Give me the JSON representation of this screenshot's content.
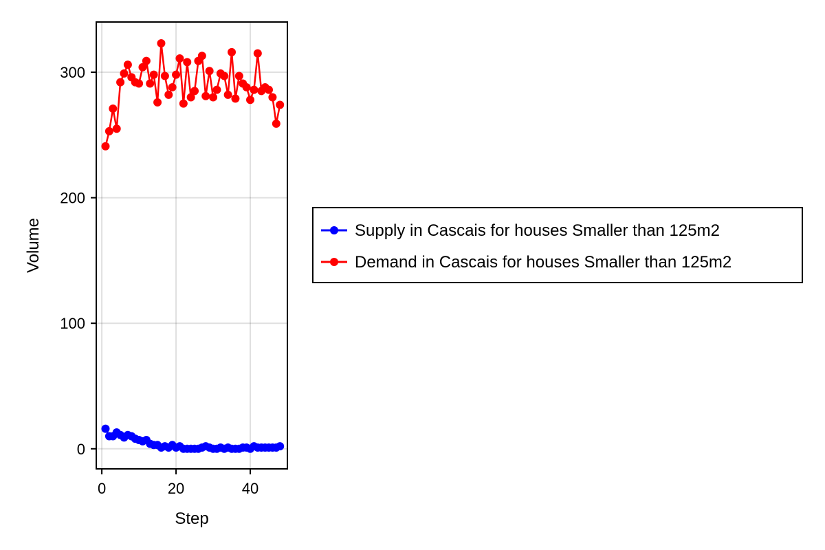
{
  "chart_data": {
    "type": "line",
    "xlabel": "Step",
    "ylabel": "Volume",
    "xlim": [
      -1.5,
      50
    ],
    "ylim": [
      -16,
      340
    ],
    "xticks": [
      0,
      20,
      40
    ],
    "yticks": [
      0,
      100,
      200,
      300
    ],
    "xtick_labels": [
      "0",
      "20",
      "40"
    ],
    "ytick_labels": [
      "0",
      "100",
      "200",
      "300"
    ],
    "grid": true,
    "legend_position": "right",
    "x": [
      1,
      2,
      3,
      4,
      5,
      6,
      7,
      8,
      9,
      10,
      11,
      12,
      13,
      14,
      15,
      16,
      17,
      18,
      19,
      20,
      21,
      22,
      23,
      24,
      25,
      26,
      27,
      28,
      29,
      30,
      31,
      32,
      33,
      34,
      35,
      36,
      37,
      38,
      39,
      40,
      41,
      42,
      43,
      44,
      45,
      46,
      47,
      48
    ],
    "series": [
      {
        "name": "Supply in Cascais for houses Smaller than 125m2",
        "color": "#0000ff",
        "values": [
          16,
          10,
          10,
          13,
          11,
          9,
          11,
          10,
          8,
          7,
          6,
          7,
          4,
          3,
          3,
          1,
          2,
          1,
          3,
          1,
          2,
          0,
          0,
          0,
          0,
          0,
          1,
          2,
          1,
          0,
          0,
          1,
          0,
          1,
          0,
          0,
          0,
          1,
          1,
          0,
          2,
          1,
          1,
          1,
          1,
          1,
          1,
          2
        ]
      },
      {
        "name": "Demand in Cascais for houses Smaller than 125m2",
        "color": "#ff0000",
        "values": [
          241,
          253,
          271,
          255,
          292,
          299,
          306,
          296,
          292,
          291,
          304,
          309,
          291,
          298,
          276,
          323,
          297,
          282,
          288,
          298,
          311,
          275,
          308,
          280,
          285,
          309,
          313,
          281,
          301,
          280,
          286,
          299,
          297,
          282,
          316,
          279,
          297,
          291,
          288,
          278,
          286,
          315,
          285,
          288,
          286,
          280,
          259,
          274
        ]
      }
    ]
  }
}
